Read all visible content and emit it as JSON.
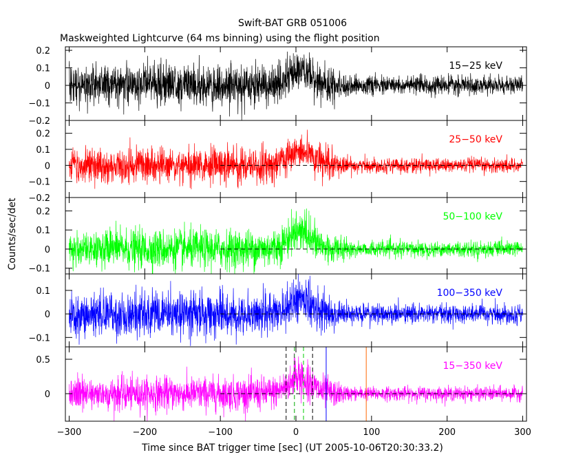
{
  "title": "Swift-BAT GRB 051006",
  "subtitle": "Maskweighted Lightcurve (64 ms binning) using the flight position",
  "ylabel": "Counts/sec/det",
  "xlabel": "Time since BAT trigger time [sec] (UT 2005-10-06T20:30:33.2)",
  "chart_data": [
    {
      "type": "line",
      "series": [
        {
          "name": "15-25 keV",
          "color": "#000000"
        }
      ],
      "xlim": [
        -305,
        305
      ],
      "ylim": [
        -0.2,
        0.22
      ],
      "x_ticks": [
        "-300",
        "-200",
        "-100",
        "0",
        "100",
        "200",
        "300"
      ],
      "y_ticks": [
        "-0.2",
        "-0.1",
        "0",
        "0.1",
        "0.2"
      ],
      "noise_before": 0.055,
      "noise_after": 0.025,
      "burst_peak": 0.2,
      "zero_line": false
    },
    {
      "type": "line",
      "series": [
        {
          "name": "25-50 keV",
          "color": "#ff0000"
        }
      ],
      "xlim": [
        -305,
        305
      ],
      "ylim": [
        -0.2,
        0.28
      ],
      "x_ticks": [
        "-300",
        "-200",
        "-100",
        "0",
        "100",
        "200",
        "300"
      ],
      "y_ticks": [
        "-0.2",
        "-0.1",
        "0",
        "0.1",
        "0.2"
      ],
      "noise_before": 0.055,
      "noise_after": 0.022,
      "burst_peak": 0.27,
      "zero_line": true
    },
    {
      "type": "line",
      "series": [
        {
          "name": "50-100 keV",
          "color": "#00ff00"
        }
      ],
      "xlim": [
        -305,
        305
      ],
      "ylim": [
        -0.13,
        0.27
      ],
      "x_ticks": [
        "-300",
        "-200",
        "-100",
        "0",
        "100",
        "200",
        "300"
      ],
      "y_ticks": [
        "-0.1",
        "0",
        "0.1",
        "0.2"
      ],
      "noise_before": 0.05,
      "noise_after": 0.02,
      "burst_peak": 0.25,
      "zero_line": true
    },
    {
      "type": "line",
      "series": [
        {
          "name": "100-350 keV",
          "color": "#0000ff"
        }
      ],
      "xlim": [
        -305,
        305
      ],
      "ylim": [
        -0.14,
        0.17
      ],
      "x_ticks": [
        "-300",
        "-200",
        "-100",
        "0",
        "100",
        "200",
        "300"
      ],
      "y_ticks": [
        "-0.1",
        "0",
        "0.1"
      ],
      "noise_before": 0.045,
      "noise_after": 0.02,
      "burst_peak": 0.16,
      "zero_line": true
    },
    {
      "type": "line",
      "series": [
        {
          "name": "15-350 keV",
          "color": "#ff00ff"
        }
      ],
      "xlim": [
        -305,
        305
      ],
      "ylim": [
        -0.4,
        0.68
      ],
      "x_ticks": [
        "-300",
        "-200",
        "-100",
        "0",
        "100",
        "200",
        "300"
      ],
      "y_ticks": [
        "0",
        "0.5"
      ],
      "noise_before": 0.12,
      "noise_after": 0.05,
      "burst_peak": 0.6,
      "zero_line": true,
      "markers": [
        {
          "x": -13,
          "color": "#000000",
          "style": "dashed"
        },
        {
          "x": -2,
          "color": "#00aa00",
          "style": "dashed"
        },
        {
          "x": 10,
          "color": "#00cc00",
          "style": "dashed"
        },
        {
          "x": 22,
          "color": "#000000",
          "style": "dashed"
        },
        {
          "x": 40,
          "color": "#0000ff",
          "style": "solid"
        },
        {
          "x": 93,
          "color": "#ff6600",
          "style": "solid"
        }
      ]
    }
  ]
}
